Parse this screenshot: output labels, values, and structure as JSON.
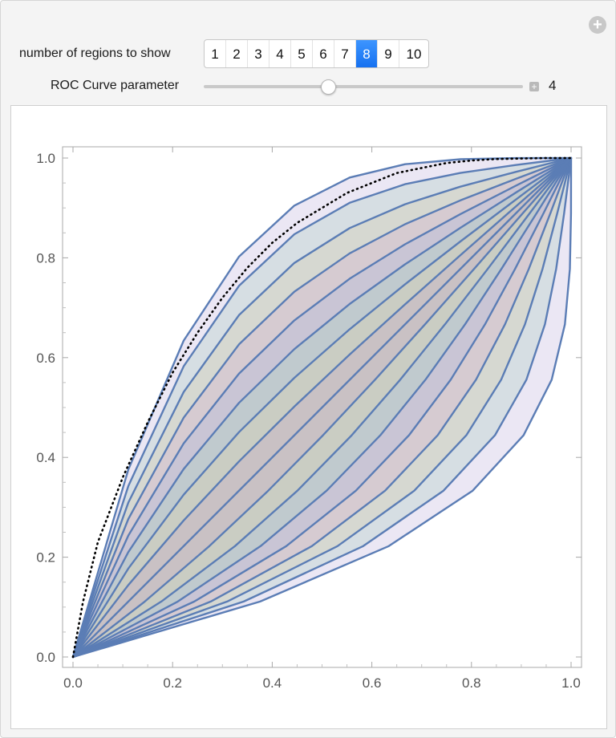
{
  "controls": {
    "regions_label": "number of regions to show",
    "region_options": [
      "1",
      "2",
      "3",
      "4",
      "5",
      "6",
      "7",
      "8",
      "9",
      "10"
    ],
    "selected_region": "8",
    "roc_label": "ROC Curve parameter",
    "roc_value": "4",
    "roc_slider_fraction": 0.4,
    "plus_icon": "plus-circle-icon",
    "slider_plus_icon": "plus-square-icon"
  },
  "chart_data": {
    "type": "area",
    "x_ticks": [
      "0.0",
      "0.2",
      "0.4",
      "0.6",
      "0.8",
      "1.0"
    ],
    "y_ticks": [
      "0.0",
      "0.2",
      "0.4",
      "0.6",
      "0.8",
      "1.0"
    ],
    "xlim": [
      0,
      1
    ],
    "ylim": [
      0,
      1
    ],
    "roc_parameter": 4,
    "regions_shown": 8,
    "roc_curve": {
      "style": "dotted",
      "color": "#000000",
      "x": [
        0,
        0.02,
        0.05,
        0.1,
        0.15,
        0.2,
        0.25,
        0.3,
        0.35,
        0.4,
        0.45,
        0.5,
        0.55,
        0.6,
        0.65,
        0.7,
        0.75,
        0.8,
        0.85,
        0.9,
        0.95,
        1.0
      ],
      "y": [
        0,
        0.11,
        0.23,
        0.36,
        0.47,
        0.57,
        0.65,
        0.72,
        0.78,
        0.83,
        0.87,
        0.9,
        0.93,
        0.95,
        0.97,
        0.98,
        0.99,
        0.995,
        0.998,
        0.999,
        1.0,
        1.0
      ]
    },
    "region_outline_color": "#5b7db5",
    "region_fill_colors": [
      "#c8a2c8",
      "#e6d8a8",
      "#a8d8c0",
      "#a8b8e0",
      "#d8a8d0",
      "#d8c8a0",
      "#a0c8b8",
      "#b8a8d8",
      "#c8d8a0",
      "#e0b0b0"
    ]
  }
}
